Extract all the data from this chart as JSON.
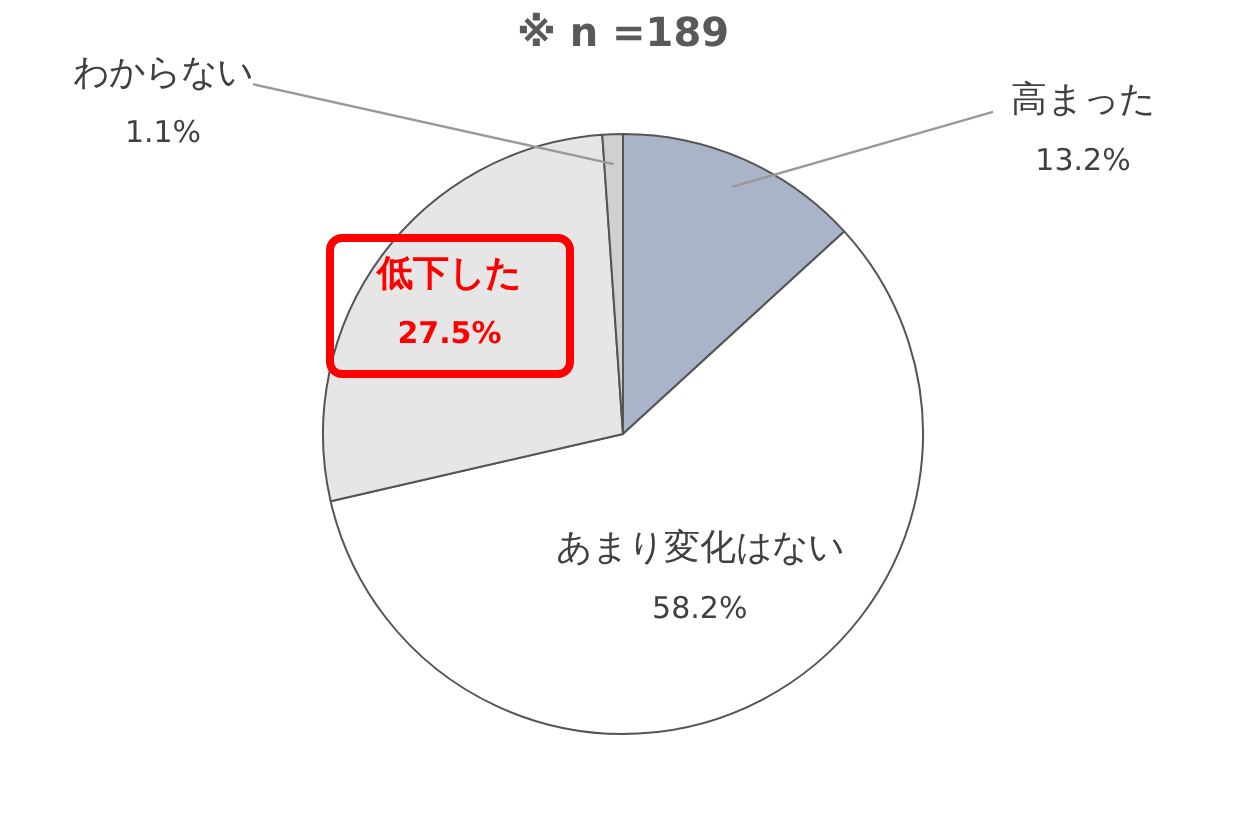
{
  "chart_data": {
    "type": "pie",
    "title": "※ n =189",
    "categories": [
      "高まった",
      "あまり変化はない",
      "低下した",
      "わからない"
    ],
    "values": [
      13.2,
      58.2,
      27.5,
      1.1
    ],
    "value_labels": [
      "13.2%",
      "58.2%",
      "27.5%",
      "1.1%"
    ],
    "colors": [
      "#a9b4c8",
      "#ffffff",
      "#e6e6e6",
      "#d0d0d0"
    ],
    "legend": false
  }
}
